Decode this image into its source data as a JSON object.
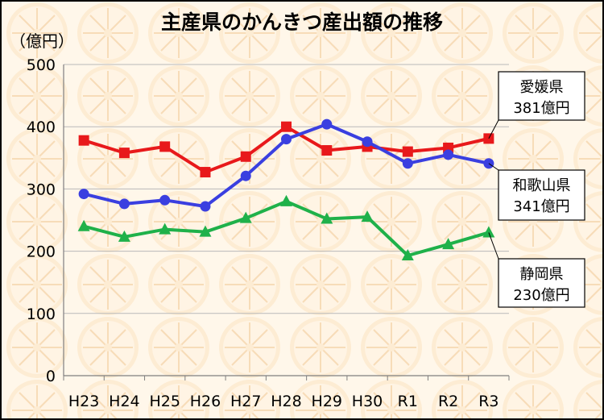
{
  "chart_data": {
    "type": "line",
    "title": "主産県のかんきつ産出額の推移",
    "unit_label": "（億円）",
    "categories": [
      "H23",
      "H24",
      "H25",
      "H26",
      "H27",
      "H28",
      "H29",
      "H30",
      "R1",
      "R2",
      "R3"
    ],
    "ylim": [
      0,
      500
    ],
    "yticks": [
      0,
      100,
      200,
      300,
      400,
      500
    ],
    "grid": true,
    "series": [
      {
        "name": "愛媛県",
        "color": "#e8191b",
        "marker": "square",
        "values": [
          378,
          358,
          368,
          327,
          352,
          400,
          362,
          368,
          360,
          366,
          381
        ],
        "callout_value": "381億円"
      },
      {
        "name": "和歌山県",
        "color": "#3a3fe0",
        "marker": "circle",
        "values": [
          292,
          276,
          282,
          272,
          321,
          380,
          404,
          376,
          341,
          355,
          341
        ],
        "callout_value": "341億円"
      },
      {
        "name": "静岡県",
        "color": "#1fb14a",
        "marker": "triangle",
        "values": [
          240,
          223,
          235,
          231,
          253,
          280,
          252,
          255,
          193,
          211,
          230
        ],
        "callout_value": "230億円"
      }
    ]
  }
}
